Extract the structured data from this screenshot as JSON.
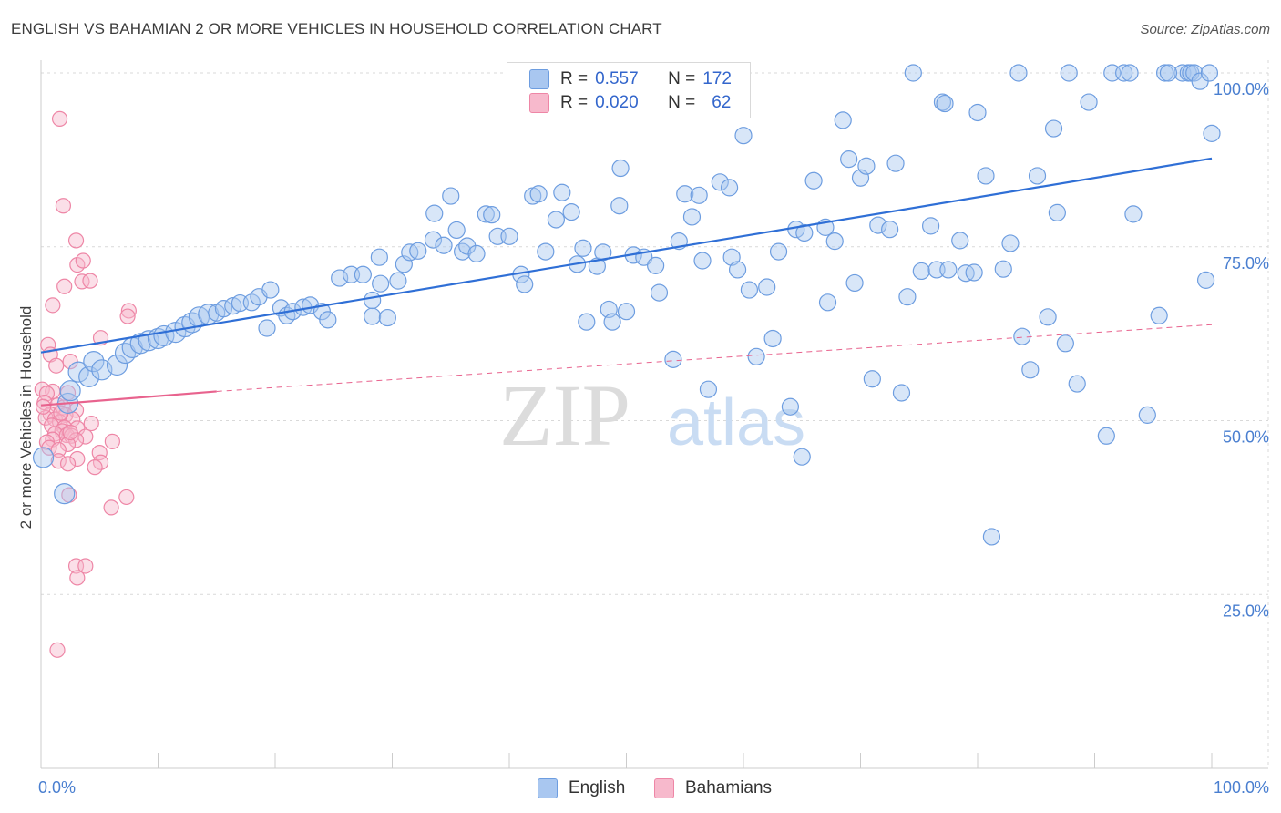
{
  "title": "ENGLISH VS BAHAMIAN 2 OR MORE VEHICLES IN HOUSEHOLD CORRELATION CHART",
  "source": "Source: ZipAtlas.com",
  "watermark": {
    "zip": "ZIP",
    "atlas": "atlas"
  },
  "legend": {
    "english": {
      "r_label": "R =",
      "r_value": "0.557",
      "n_label": "N =",
      "n_value": "172"
    },
    "bahamian": {
      "r_label": "R =",
      "r_value": "0.020",
      "n_label": "N =",
      "n_value": "62"
    }
  },
  "bottom_legend": {
    "english": "English",
    "bahamians": "Bahamians"
  },
  "colors": {
    "english_fill": "#a9c7f0",
    "english_stroke": "#6d9de0",
    "english_line": "#2f6fd6",
    "bahamian_fill": "#f7b9cc",
    "bahamian_stroke": "#ee86a6",
    "bahamian_line": "#e8638e",
    "tick_text": "#4a7fd0",
    "grid": "#d9d9d9"
  },
  "chart_data": {
    "type": "scatter",
    "title": "ENGLISH VS BAHAMIAN 2 OR MORE VEHICLES IN HOUSEHOLD CORRELATION CHART",
    "xlabel": "",
    "ylabel": "2 or more Vehicles in Household",
    "xlim": [
      0,
      100
    ],
    "ylim": [
      0,
      100
    ],
    "x_tick_labels": {
      "left": "0.0%",
      "right": "100.0%"
    },
    "y_ticks": [
      {
        "value": 25,
        "label": "25.0%"
      },
      {
        "value": 50,
        "label": "50.0%"
      },
      {
        "value": 75,
        "label": "75.0%"
      },
      {
        "value": 100,
        "label": "100.0%"
      }
    ],
    "grid": true,
    "series": [
      {
        "name": "English",
        "r": 0.557,
        "n": 172,
        "trend": {
          "x": [
            0,
            100
          ],
          "y": [
            59.8,
            87.7
          ]
        },
        "points": [
          [
            0.2,
            44.7
          ],
          [
            2.0,
            39.5
          ],
          [
            2.3,
            52.5
          ],
          [
            2.5,
            54.3
          ],
          [
            3.2,
            57.0
          ],
          [
            4.1,
            56.3
          ],
          [
            4.5,
            58.5
          ],
          [
            5.2,
            57.3
          ],
          [
            6.5,
            58.0
          ],
          [
            7.2,
            59.7
          ],
          [
            7.8,
            60.5
          ],
          [
            8.5,
            61.1
          ],
          [
            9.2,
            61.5
          ],
          [
            10.0,
            61.8
          ],
          [
            10.5,
            62.2
          ],
          [
            11.5,
            62.7
          ],
          [
            12.3,
            63.5
          ],
          [
            12.9,
            64.1
          ],
          [
            13.5,
            64.9
          ],
          [
            14.3,
            65.3
          ],
          [
            15.0,
            65.5
          ],
          [
            15.6,
            66.1
          ],
          [
            16.4,
            66.5
          ],
          [
            17.0,
            66.9
          ],
          [
            18.0,
            67.0
          ],
          [
            18.6,
            67.8
          ],
          [
            19.3,
            63.3
          ],
          [
            19.6,
            68.8
          ],
          [
            20.5,
            66.2
          ],
          [
            21.0,
            65.1
          ],
          [
            21.5,
            65.7
          ],
          [
            22.4,
            66.3
          ],
          [
            23.0,
            66.6
          ],
          [
            24.0,
            65.7
          ],
          [
            24.5,
            64.5
          ],
          [
            25.5,
            70.5
          ],
          [
            26.5,
            71.0
          ],
          [
            27.5,
            71.0
          ],
          [
            28.3,
            65.0
          ],
          [
            28.3,
            67.3
          ],
          [
            29.0,
            69.7
          ],
          [
            28.9,
            73.5
          ],
          [
            29.6,
            64.8
          ],
          [
            30.5,
            70.1
          ],
          [
            31.0,
            72.5
          ],
          [
            31.5,
            74.2
          ],
          [
            32.2,
            74.4
          ],
          [
            33.5,
            76.0
          ],
          [
            33.6,
            79.8
          ],
          [
            34.4,
            75.2
          ],
          [
            35.0,
            82.3
          ],
          [
            35.5,
            77.4
          ],
          [
            36.0,
            74.3
          ],
          [
            36.4,
            75.1
          ],
          [
            37.2,
            74.0
          ],
          [
            38.0,
            79.7
          ],
          [
            38.5,
            79.6
          ],
          [
            39.0,
            76.5
          ],
          [
            40.0,
            76.5
          ],
          [
            41.0,
            71.0
          ],
          [
            41.3,
            69.6
          ],
          [
            42.0,
            82.3
          ],
          [
            42.5,
            82.6
          ],
          [
            43.1,
            74.3
          ],
          [
            44.0,
            78.9
          ],
          [
            44.5,
            82.8
          ],
          [
            45.3,
            80.0
          ],
          [
            45.8,
            72.5
          ],
          [
            46.3,
            74.8
          ],
          [
            46.6,
            64.2
          ],
          [
            47.5,
            72.2
          ],
          [
            48.0,
            74.2
          ],
          [
            48.5,
            66.0
          ],
          [
            48.8,
            64.2
          ],
          [
            49.4,
            80.9
          ],
          [
            49.5,
            86.3
          ],
          [
            50.0,
            65.7
          ],
          [
            50.6,
            73.8
          ],
          [
            51.5,
            73.5
          ],
          [
            52.5,
            72.3
          ],
          [
            52.8,
            68.4
          ],
          [
            54.0,
            58.8
          ],
          [
            54.5,
            75.8
          ],
          [
            55.0,
            82.6
          ],
          [
            55.6,
            79.3
          ],
          [
            56.2,
            82.4
          ],
          [
            56.5,
            73.0
          ],
          [
            57.0,
            54.5
          ],
          [
            58.0,
            84.3
          ],
          [
            58.8,
            83.5
          ],
          [
            59.0,
            73.5
          ],
          [
            59.5,
            71.7
          ],
          [
            60.0,
            91.0
          ],
          [
            60.5,
            68.8
          ],
          [
            61.1,
            59.2
          ],
          [
            62.0,
            69.2
          ],
          [
            62.5,
            61.8
          ],
          [
            63.0,
            74.3
          ],
          [
            64.0,
            52.0
          ],
          [
            64.5,
            77.5
          ],
          [
            65.0,
            44.8
          ],
          [
            65.2,
            77.0
          ],
          [
            66.0,
            84.5
          ],
          [
            67.0,
            77.8
          ],
          [
            67.2,
            67.0
          ],
          [
            67.8,
            75.8
          ],
          [
            68.5,
            93.2
          ],
          [
            69.0,
            87.6
          ],
          [
            69.5,
            69.8
          ],
          [
            70.0,
            84.9
          ],
          [
            70.5,
            86.6
          ],
          [
            71.0,
            56.0
          ],
          [
            71.5,
            78.1
          ],
          [
            72.5,
            77.5
          ],
          [
            73.0,
            87.0
          ],
          [
            73.5,
            54.0
          ],
          [
            74.0,
            67.8
          ],
          [
            74.5,
            100.0
          ],
          [
            75.2,
            71.5
          ],
          [
            76.0,
            78.0
          ],
          [
            76.5,
            71.7
          ],
          [
            77.0,
            95.8
          ],
          [
            77.2,
            95.6
          ],
          [
            77.5,
            71.7
          ],
          [
            78.5,
            75.9
          ],
          [
            79.0,
            71.2
          ],
          [
            79.7,
            71.3
          ],
          [
            80.0,
            94.3
          ],
          [
            80.7,
            85.2
          ],
          [
            81.2,
            33.3
          ],
          [
            82.2,
            71.8
          ],
          [
            82.8,
            75.5
          ],
          [
            83.5,
            100.0
          ],
          [
            83.8,
            62.1
          ],
          [
            84.5,
            57.3
          ],
          [
            85.1,
            85.2
          ],
          [
            86.0,
            64.9
          ],
          [
            86.5,
            92.0
          ],
          [
            86.8,
            79.9
          ],
          [
            87.5,
            61.1
          ],
          [
            87.8,
            100.0
          ],
          [
            88.5,
            55.3
          ],
          [
            89.5,
            95.8
          ],
          [
            91.0,
            47.8
          ],
          [
            91.5,
            100.0
          ],
          [
            92.5,
            100.0
          ],
          [
            93.0,
            100.0
          ],
          [
            93.3,
            79.7
          ],
          [
            94.5,
            50.8
          ],
          [
            95.5,
            65.1
          ],
          [
            96.0,
            100.0
          ],
          [
            97.5,
            100.0
          ],
          [
            98.0,
            100.0
          ],
          [
            98.2,
            100.0
          ],
          [
            98.5,
            100.0
          ],
          [
            99.0,
            98.8
          ],
          [
            99.5,
            70.2
          ],
          [
            99.8,
            100.0
          ],
          [
            100.0,
            91.3
          ],
          [
            96.3,
            100.0
          ]
        ]
      },
      {
        "name": "Bahamians",
        "r": 0.02,
        "n": 62,
        "trend": {
          "x": [
            0,
            15
          ],
          "y": [
            52.2,
            54.2
          ]
        },
        "trend_dashed": {
          "x": [
            15,
            100
          ],
          "y": [
            54.2,
            63.8
          ]
        },
        "points": [
          [
            1.6,
            93.4
          ],
          [
            1.9,
            80.9
          ],
          [
            3.0,
            75.9
          ],
          [
            3.1,
            72.4
          ],
          [
            3.6,
            73.0
          ],
          [
            3.5,
            70.0
          ],
          [
            4.2,
            70.1
          ],
          [
            2.0,
            69.3
          ],
          [
            1.0,
            66.6
          ],
          [
            7.5,
            65.8
          ],
          [
            7.4,
            65.0
          ],
          [
            5.1,
            61.9
          ],
          [
            0.6,
            60.9
          ],
          [
            0.8,
            59.5
          ],
          [
            2.5,
            58.5
          ],
          [
            1.3,
            57.9
          ],
          [
            0.1,
            54.5
          ],
          [
            1.0,
            54.2
          ],
          [
            0.5,
            53.9
          ],
          [
            2.3,
            54.0
          ],
          [
            0.3,
            52.6
          ],
          [
            1.4,
            52.2
          ],
          [
            1.9,
            51.9
          ],
          [
            3.0,
            51.5
          ],
          [
            0.8,
            50.9
          ],
          [
            2.1,
            50.8
          ],
          [
            0.4,
            50.4
          ],
          [
            1.2,
            50.2
          ],
          [
            2.7,
            50.2
          ],
          [
            1.6,
            49.8
          ],
          [
            4.3,
            49.6
          ],
          [
            0.9,
            49.3
          ],
          [
            2.0,
            49.0
          ],
          [
            3.1,
            48.9
          ],
          [
            1.8,
            48.5
          ],
          [
            1.2,
            48.1
          ],
          [
            2.2,
            47.9
          ],
          [
            2.6,
            47.8
          ],
          [
            3.8,
            47.7
          ],
          [
            1.0,
            47.3
          ],
          [
            3.0,
            47.2
          ],
          [
            6.1,
            47.0
          ],
          [
            0.5,
            46.9
          ],
          [
            2.3,
            46.6
          ],
          [
            0.7,
            46.1
          ],
          [
            1.5,
            45.8
          ],
          [
            5.0,
            45.4
          ],
          [
            3.1,
            44.5
          ],
          [
            1.5,
            44.2
          ],
          [
            5.1,
            44.0
          ],
          [
            2.3,
            43.8
          ],
          [
            4.6,
            43.3
          ],
          [
            2.4,
            39.3
          ],
          [
            7.3,
            39.0
          ],
          [
            6.0,
            37.5
          ],
          [
            3.0,
            29.1
          ],
          [
            3.8,
            29.1
          ],
          [
            3.1,
            27.4
          ],
          [
            1.4,
            17.0
          ],
          [
            0.2,
            52.0
          ],
          [
            1.7,
            51.1
          ],
          [
            2.5,
            48.3
          ]
        ]
      }
    ]
  }
}
